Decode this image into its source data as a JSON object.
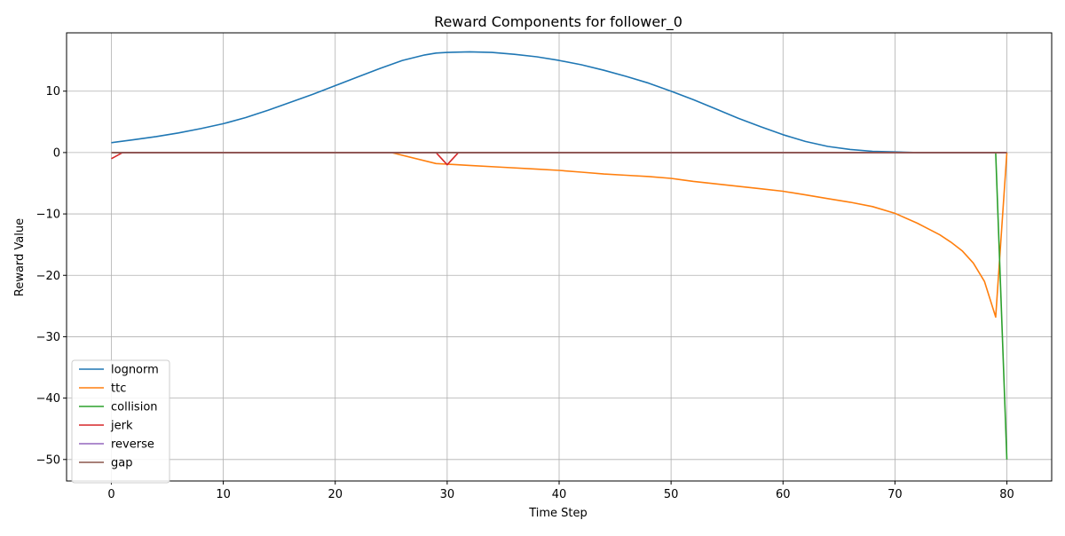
{
  "chart_data": {
    "type": "line",
    "title": "Reward Components for follower_0",
    "xlabel": "Time Step",
    "ylabel": "Reward Value",
    "xlim": [
      -4,
      84
    ],
    "ylim": [
      -53.5,
      19.5
    ],
    "xticks": [
      0,
      10,
      20,
      30,
      40,
      50,
      60,
      70,
      80
    ],
    "xtick_labels": [
      "0",
      "10",
      "20",
      "30",
      "40",
      "50",
      "60",
      "70",
      "80"
    ],
    "yticks": [
      10,
      0,
      -10,
      -20,
      -30,
      -40,
      -50
    ],
    "ytick_labels": [
      "10",
      "0",
      "−10",
      "−20",
      "−30",
      "−40",
      "−50"
    ],
    "grid": true,
    "legend_position": "lower-left",
    "series": [
      {
        "name": "lognorm",
        "color": "#1f77b4",
        "x": [
          0,
          2,
          4,
          6,
          8,
          10,
          12,
          14,
          16,
          18,
          20,
          22,
          24,
          26,
          28,
          29,
          30,
          32,
          34,
          36,
          38,
          40,
          42,
          44,
          46,
          48,
          50,
          52,
          54,
          56,
          58,
          60,
          62,
          64,
          66,
          68,
          70,
          72,
          74,
          76,
          78,
          80
        ],
        "y": [
          1.6,
          2.1,
          2.6,
          3.2,
          3.9,
          4.7,
          5.7,
          6.9,
          8.2,
          9.5,
          10.9,
          12.3,
          13.7,
          15.0,
          15.9,
          16.2,
          16.3,
          16.4,
          16.3,
          16.0,
          15.6,
          15.0,
          14.3,
          13.4,
          12.4,
          11.3,
          10.0,
          8.6,
          7.1,
          5.6,
          4.2,
          2.9,
          1.8,
          1.0,
          0.5,
          0.2,
          0.1,
          0.0,
          0.0,
          0.0,
          0.0,
          0.0
        ]
      },
      {
        "name": "ttc",
        "color": "#ff7f0e",
        "x": [
          0,
          24,
          25,
          29,
          30,
          32,
          35,
          38,
          40,
          42,
          44,
          46,
          48,
          50,
          52,
          54,
          56,
          58,
          60,
          62,
          64,
          66,
          68,
          70,
          72,
          74,
          75,
          76,
          77,
          78,
          79,
          80
        ],
        "y": [
          0.0,
          0.0,
          0.0,
          -1.8,
          -1.9,
          -2.1,
          -2.4,
          -2.7,
          -2.9,
          -3.2,
          -3.5,
          -3.7,
          -3.9,
          -4.2,
          -4.7,
          -5.1,
          -5.5,
          -5.9,
          -6.3,
          -6.9,
          -7.5,
          -8.1,
          -8.8,
          -9.9,
          -11.5,
          -13.4,
          -14.6,
          -16.0,
          -18.0,
          -21.0,
          -26.8,
          0.0
        ]
      },
      {
        "name": "collision",
        "color": "#2ca02c",
        "x": [
          0,
          79,
          80
        ],
        "y": [
          0.0,
          0.0,
          -50.0
        ]
      },
      {
        "name": "jerk",
        "color": "#d62728",
        "x": [
          0,
          1,
          29,
          30,
          31,
          80
        ],
        "y": [
          -1.0,
          0.0,
          0.0,
          -2.0,
          0.0,
          0.0
        ]
      },
      {
        "name": "reverse",
        "color": "#9467bd",
        "x": [
          0,
          80
        ],
        "y": [
          0.0,
          0.0
        ]
      },
      {
        "name": "gap",
        "color": "#8c564b",
        "x": [
          0,
          80
        ],
        "y": [
          0.0,
          0.0
        ]
      }
    ]
  }
}
